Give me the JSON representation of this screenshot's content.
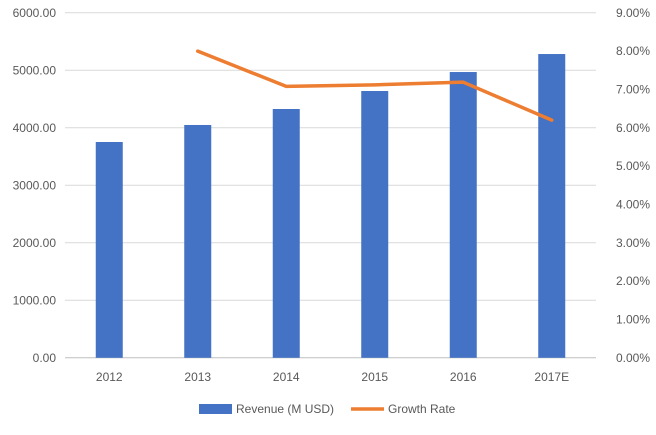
{
  "chart_data": {
    "type": "bar+line",
    "categories": [
      "2012",
      "2013",
      "2014",
      "2015",
      "2016",
      "2017E"
    ],
    "series": [
      {
        "name": "Revenue (M USD)",
        "type": "bar",
        "axis": "left",
        "color": "#4472C4",
        "values": [
          3753,
          4049,
          4327,
          4640,
          4970,
          5283
        ]
      },
      {
        "name": "Growth Rate",
        "type": "line",
        "axis": "right",
        "color": "#ED7D31",
        "values": [
          null,
          0.08,
          0.0708,
          0.0712,
          0.0719,
          0.062
        ]
      }
    ],
    "y_left": {
      "range": [
        0,
        6000
      ],
      "ticks": [
        "0.00",
        "1000.00",
        "2000.00",
        "3000.00",
        "4000.00",
        "5000.00",
        "6000.00"
      ]
    },
    "y_right": {
      "range": [
        0,
        0.09
      ],
      "ticks": [
        "0.00%",
        "1.00%",
        "2.00%",
        "3.00%",
        "4.00%",
        "5.00%",
        "6.00%",
        "7.00%",
        "8.00%",
        "9.00%"
      ]
    },
    "grid": true,
    "legend": "bottom",
    "gridline_color": "#D9D9D9"
  }
}
